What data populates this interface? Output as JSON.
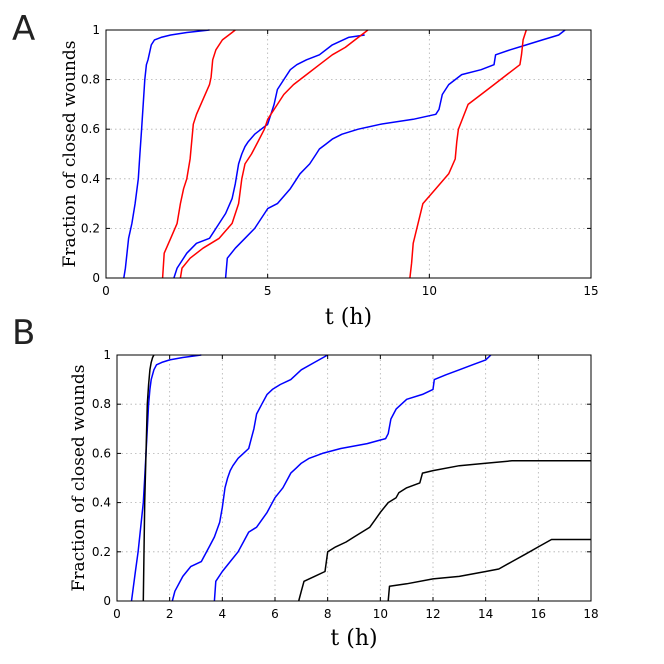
{
  "panels": [
    {
      "letter": "A"
    },
    {
      "letter": "B"
    }
  ],
  "chart_data": [
    {
      "type": "line",
      "panel": "A",
      "title": "",
      "xlabel": "t (h)",
      "ylabel": "Fraction of closed wounds",
      "xlim": [
        0,
        15
      ],
      "ylim": [
        0,
        1
      ],
      "xticks": [
        0,
        5,
        10,
        15
      ],
      "yticks": [
        0,
        0.2,
        0.4,
        0.6,
        0.8,
        1
      ],
      "xtick_labels": [
        "0",
        "5",
        "10",
        "15"
      ],
      "ytick_labels": [
        "0",
        "0.2",
        "0.4",
        "0.6",
        "0.8",
        "1"
      ],
      "grid": true,
      "series": [
        {
          "name": "blue-1",
          "color": "#0000ff",
          "x": [
            0.55,
            0.6,
            0.65,
            0.7,
            0.8,
            0.9,
            1.0,
            1.05,
            1.1,
            1.15,
            1.2,
            1.25,
            1.3,
            1.4,
            1.5,
            1.7,
            2.0,
            2.5,
            3.2
          ],
          "y": [
            0,
            0.04,
            0.1,
            0.16,
            0.22,
            0.3,
            0.4,
            0.5,
            0.6,
            0.7,
            0.8,
            0.86,
            0.88,
            0.94,
            0.96,
            0.97,
            0.98,
            0.99,
            1.0
          ]
        },
        {
          "name": "red-1",
          "color": "#ff0000",
          "x": [
            1.75,
            1.8,
            2.0,
            2.2,
            2.3,
            2.4,
            2.5,
            2.6,
            2.65,
            2.7,
            2.8,
            3.0,
            3.2,
            3.25,
            3.3,
            3.4,
            3.6,
            3.9,
            4.0
          ],
          "y": [
            0,
            0.1,
            0.16,
            0.22,
            0.3,
            0.36,
            0.4,
            0.48,
            0.55,
            0.62,
            0.66,
            0.72,
            0.78,
            0.81,
            0.88,
            0.92,
            0.96,
            0.99,
            1.0
          ]
        },
        {
          "name": "blue-2",
          "color": "#0000ff",
          "x": [
            2.1,
            2.2,
            2.5,
            2.8,
            3.2,
            3.5,
            3.7,
            3.9,
            4.0,
            4.1,
            4.2,
            4.3,
            4.4,
            4.6,
            4.8,
            5.0,
            5.1,
            5.2,
            5.3,
            5.5,
            5.7,
            5.9,
            6.2,
            6.6,
            7.0,
            7.5,
            8.0
          ],
          "y": [
            0,
            0.04,
            0.1,
            0.14,
            0.16,
            0.22,
            0.26,
            0.32,
            0.38,
            0.46,
            0.5,
            0.53,
            0.55,
            0.58,
            0.6,
            0.62,
            0.66,
            0.7,
            0.76,
            0.8,
            0.84,
            0.86,
            0.88,
            0.9,
            0.94,
            0.97,
            0.98
          ]
        },
        {
          "name": "red-2",
          "color": "#ff0000",
          "x": [
            2.3,
            2.35,
            2.6,
            3.0,
            3.5,
            3.9,
            4.1,
            4.2,
            4.3,
            4.5,
            4.7,
            4.9,
            5.0,
            5.1,
            5.3,
            5.5,
            5.8,
            6.2,
            6.6,
            7.0,
            7.4,
            7.7,
            7.9,
            8.0,
            8.1
          ],
          "y": [
            0,
            0.04,
            0.08,
            0.12,
            0.16,
            0.22,
            0.3,
            0.4,
            0.46,
            0.5,
            0.55,
            0.6,
            0.64,
            0.66,
            0.7,
            0.74,
            0.78,
            0.82,
            0.86,
            0.9,
            0.93,
            0.96,
            0.98,
            0.99,
            1.0
          ]
        },
        {
          "name": "blue-3",
          "color": "#0000ff",
          "x": [
            3.7,
            3.75,
            4.0,
            4.3,
            4.6,
            4.8,
            5.0,
            5.3,
            5.7,
            6.0,
            6.3,
            6.5,
            6.6,
            6.8,
            7.0,
            7.3,
            7.8,
            8.5,
            9.5,
            10.2,
            10.3,
            10.4,
            10.6,
            11.0,
            11.6,
            12.0,
            12.05,
            12.5,
            13.0,
            13.5,
            14.0,
            14.2
          ],
          "y": [
            0,
            0.08,
            0.12,
            0.16,
            0.2,
            0.24,
            0.28,
            0.3,
            0.36,
            0.42,
            0.46,
            0.5,
            0.52,
            0.54,
            0.56,
            0.58,
            0.6,
            0.62,
            0.64,
            0.66,
            0.68,
            0.74,
            0.78,
            0.82,
            0.84,
            0.86,
            0.9,
            0.92,
            0.94,
            0.96,
            0.98,
            1.0
          ]
        },
        {
          "name": "red-3",
          "color": "#ff0000",
          "x": [
            9.4,
            9.45,
            9.5,
            9.8,
            10.2,
            10.6,
            10.8,
            10.85,
            10.9,
            11.2,
            11.6,
            12.0,
            12.4,
            12.8,
            12.85,
            12.9,
            13.0
          ],
          "y": [
            0,
            0.06,
            0.14,
            0.3,
            0.36,
            0.42,
            0.48,
            0.55,
            0.6,
            0.7,
            0.74,
            0.78,
            0.82,
            0.86,
            0.9,
            0.96,
            1.0
          ]
        }
      ]
    },
    {
      "type": "line",
      "panel": "B",
      "title": "",
      "xlabel": "t (h)",
      "ylabel": "Fraction of closed wounds",
      "xlim": [
        0,
        18
      ],
      "ylim": [
        0,
        1
      ],
      "xticks": [
        0,
        2,
        4,
        6,
        8,
        10,
        12,
        14,
        16,
        18
      ],
      "yticks": [
        0,
        0.2,
        0.4,
        0.6,
        0.8,
        1
      ],
      "xtick_labels": [
        "0",
        "2",
        "4",
        "6",
        "8",
        "10",
        "12",
        "14",
        "16",
        "18"
      ],
      "ytick_labels": [
        "0",
        "0.2",
        "0.4",
        "0.6",
        "0.8",
        "1"
      ],
      "grid": true,
      "series": [
        {
          "name": "blue-1",
          "color": "#0000ff",
          "x": [
            0.55,
            0.6,
            0.7,
            0.8,
            0.9,
            1.0,
            1.05,
            1.1,
            1.15,
            1.2,
            1.25,
            1.3,
            1.4,
            1.5,
            1.7,
            2.0,
            2.5,
            3.2
          ],
          "y": [
            0,
            0.04,
            0.12,
            0.2,
            0.3,
            0.4,
            0.5,
            0.6,
            0.7,
            0.8,
            0.86,
            0.9,
            0.94,
            0.96,
            0.97,
            0.98,
            0.99,
            1.0
          ]
        },
        {
          "name": "blue-2",
          "color": "#0000ff",
          "x": [
            2.1,
            2.2,
            2.5,
            2.8,
            3.2,
            3.5,
            3.7,
            3.9,
            4.0,
            4.1,
            4.2,
            4.3,
            4.4,
            4.6,
            4.8,
            5.0,
            5.1,
            5.2,
            5.3,
            5.5,
            5.7,
            5.9,
            6.2,
            6.6,
            7.0,
            7.5,
            8.0
          ],
          "y": [
            0,
            0.04,
            0.1,
            0.14,
            0.16,
            0.22,
            0.26,
            0.32,
            0.38,
            0.46,
            0.5,
            0.53,
            0.55,
            0.58,
            0.6,
            0.62,
            0.66,
            0.7,
            0.76,
            0.8,
            0.84,
            0.86,
            0.88,
            0.9,
            0.94,
            0.97,
            1.0
          ]
        },
        {
          "name": "blue-3",
          "color": "#0000ff",
          "x": [
            3.7,
            3.75,
            4.0,
            4.3,
            4.6,
            4.8,
            5.0,
            5.3,
            5.7,
            6.0,
            6.3,
            6.5,
            6.6,
            6.8,
            7.0,
            7.3,
            7.8,
            8.5,
            9.5,
            10.2,
            10.3,
            10.4,
            10.6,
            11.0,
            11.6,
            12.0,
            12.05,
            12.5,
            13.0,
            13.5,
            14.0,
            14.2
          ],
          "y": [
            0,
            0.08,
            0.12,
            0.16,
            0.2,
            0.24,
            0.28,
            0.3,
            0.36,
            0.42,
            0.46,
            0.5,
            0.52,
            0.54,
            0.56,
            0.58,
            0.6,
            0.62,
            0.64,
            0.66,
            0.68,
            0.74,
            0.78,
            0.82,
            0.84,
            0.86,
            0.9,
            0.92,
            0.94,
            0.96,
            0.98,
            1.0
          ]
        },
        {
          "name": "black-1",
          "color": "#000000",
          "x": [
            1.0,
            1.05,
            1.1,
            1.15,
            1.2,
            1.25,
            1.3,
            1.35,
            1.4
          ],
          "y": [
            0,
            0.4,
            0.6,
            0.8,
            0.88,
            0.94,
            0.97,
            0.99,
            1.0
          ]
        },
        {
          "name": "black-2",
          "color": "#000000",
          "x": [
            6.9,
            7.0,
            7.1,
            7.5,
            7.9,
            8.0,
            8.3,
            8.7,
            9.0,
            9.3,
            9.6,
            9.8,
            10.0,
            10.3,
            10.6,
            10.7,
            11.0,
            11.5,
            11.6,
            12.0,
            13.0,
            14.0,
            15.0,
            15.5,
            16.0,
            17.0,
            18.0
          ],
          "y": [
            0,
            0.04,
            0.08,
            0.1,
            0.12,
            0.2,
            0.22,
            0.24,
            0.26,
            0.28,
            0.3,
            0.33,
            0.36,
            0.4,
            0.42,
            0.44,
            0.46,
            0.48,
            0.52,
            0.53,
            0.55,
            0.56,
            0.57,
            0.57,
            0.57,
            0.57,
            0.57
          ]
        },
        {
          "name": "black-3",
          "color": "#000000",
          "x": [
            10.3,
            10.35,
            11.0,
            12.0,
            13.0,
            14.0,
            14.5,
            15.0,
            15.5,
            16.0,
            16.5,
            17.0,
            18.0
          ],
          "y": [
            0,
            0.06,
            0.07,
            0.09,
            0.1,
            0.12,
            0.13,
            0.16,
            0.19,
            0.22,
            0.25,
            0.25,
            0.25
          ]
        }
      ]
    }
  ]
}
